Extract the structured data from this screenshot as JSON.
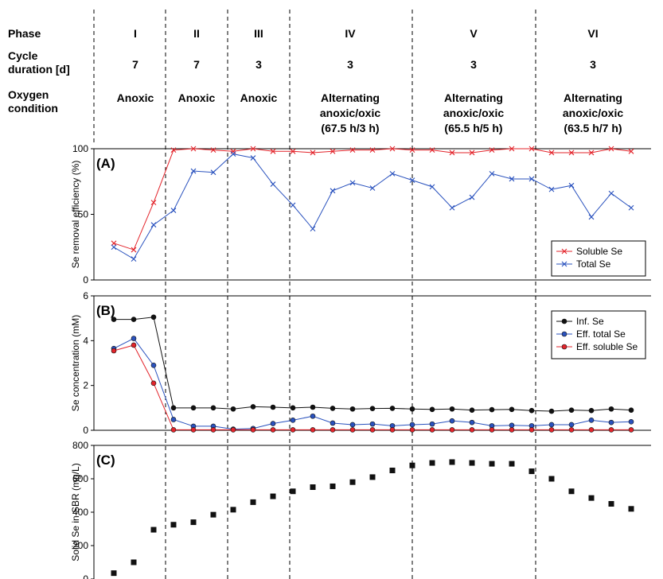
{
  "header": {
    "row_labels": [
      [
        "Phase"
      ],
      [
        "Cycle",
        " duration [d]"
      ],
      [
        "Oxygen",
        " condition"
      ]
    ],
    "phases": [
      {
        "name": "I",
        "duration": "7",
        "oxygen": [
          "Anoxic"
        ]
      },
      {
        "name": "II",
        "duration": "7",
        "oxygen": [
          "Anoxic"
        ]
      },
      {
        "name": "III",
        "duration": "3",
        "oxygen": [
          "Anoxic"
        ]
      },
      {
        "name": "IV",
        "duration": "3",
        "oxygen": [
          "Alternating",
          "anoxic/oxic",
          "(67.5 h/3 h)"
        ]
      },
      {
        "name": "V",
        "duration": "3",
        "oxygen": [
          "Alternating",
          "anoxic/oxic",
          "(65.5 h/5 h)"
        ]
      },
      {
        "name": "VI",
        "duration": "3",
        "oxygen": [
          "Alternating",
          "anoxic/oxic",
          "(63.5 h/7 h)"
        ]
      }
    ]
  },
  "chart_data": [
    {
      "type": "line",
      "panel_label": "(A)",
      "ylabel": "Se removal efficiency (%)",
      "ylim": [
        0,
        100
      ],
      "yticks": [
        "0",
        "50",
        "100"
      ],
      "legend_position": "bottom-right",
      "x": [
        1,
        2,
        3,
        4,
        5,
        6,
        7,
        8,
        9,
        10,
        11,
        12,
        13,
        14,
        15,
        16,
        17,
        18,
        19,
        20,
        21,
        22,
        23,
        24,
        25,
        26,
        27,
        28
      ],
      "series": [
        {
          "name": "Soluble Se",
          "color": "#e3242b",
          "marker": "x",
          "values": [
            28,
            23,
            59,
            99,
            100,
            99,
            98,
            100,
            98,
            98,
            97,
            98,
            99,
            99,
            100,
            99,
            99,
            97,
            97,
            99,
            100,
            100,
            97,
            97,
            97,
            100,
            98,
            null
          ]
        },
        {
          "name": "Total Se",
          "color": "#2a52be",
          "marker": "x",
          "values": [
            25,
            16,
            42,
            53,
            83,
            82,
            96,
            93,
            73,
            57,
            39,
            68,
            74,
            70,
            81,
            76,
            71,
            55,
            63,
            81,
            77,
            77,
            69,
            72,
            48,
            66,
            55,
            null
          ]
        }
      ]
    },
    {
      "type": "line",
      "panel_label": "(B)",
      "ylabel": "Se concentration (mM)",
      "ylim": [
        0,
        6
      ],
      "yticks": [
        "0",
        "2",
        "4",
        "6"
      ],
      "legend_position": "top-right",
      "x": [
        1,
        2,
        3,
        4,
        5,
        6,
        7,
        8,
        9,
        10,
        11,
        12,
        13,
        14,
        15,
        16,
        17,
        18,
        19,
        20,
        21,
        22,
        23,
        24,
        25,
        26,
        27,
        28
      ],
      "series": [
        {
          "name": "Inf. Se",
          "color": "#111111",
          "marker": "o",
          "values": [
            4.95,
            4.95,
            5.05,
            1.0,
            1.0,
            1.0,
            0.95,
            1.05,
            1.03,
            1.0,
            1.03,
            0.98,
            0.95,
            0.97,
            0.98,
            0.95,
            0.93,
            0.95,
            0.9,
            0.92,
            0.93,
            0.88,
            0.85,
            0.9,
            0.88,
            0.95,
            0.9,
            null
          ]
        },
        {
          "name": "Eff. total Se",
          "color": "#2a52be",
          "marker": "o",
          "values": [
            3.65,
            4.1,
            2.9,
            0.48,
            0.18,
            0.18,
            0.05,
            0.08,
            0.3,
            0.45,
            0.63,
            0.32,
            0.25,
            0.28,
            0.2,
            0.25,
            0.28,
            0.42,
            0.35,
            0.2,
            0.22,
            0.2,
            0.25,
            0.25,
            0.45,
            0.35,
            0.38,
            null
          ]
        },
        {
          "name": "Eff. soluble Se",
          "color": "#e3242b",
          "marker": "o",
          "values": [
            3.55,
            3.8,
            2.1,
            0.02,
            0.02,
            0.02,
            0.02,
            0.02,
            0.02,
            0.02,
            0.02,
            0.02,
            0.02,
            0.02,
            0.02,
            0.02,
            0.02,
            0.02,
            0.02,
            0.02,
            0.02,
            0.02,
            0.02,
            0.02,
            0.02,
            0.02,
            0.02,
            null
          ]
        }
      ]
    },
    {
      "type": "scatter",
      "panel_label": "(C)",
      "ylabel": "Solid Se in SBR (mg/L)",
      "ylim": [
        0,
        800
      ],
      "yticks": [
        "0",
        "200",
        "400",
        "600",
        "800"
      ],
      "x": [
        1,
        2,
        3,
        4,
        5,
        6,
        7,
        8,
        9,
        10,
        11,
        12,
        13,
        14,
        15,
        16,
        17,
        18,
        19,
        20,
        21,
        22,
        23,
        24,
        25,
        26,
        27,
        28
      ],
      "series": [
        {
          "name": "",
          "color": "#111111",
          "marker": "square",
          "values": [
            35,
            100,
            295,
            325,
            340,
            385,
            415,
            460,
            495,
            525,
            550,
            555,
            580,
            610,
            650,
            680,
            695,
            700,
            695,
            690,
            690,
            645,
            600,
            525,
            485,
            450,
            420,
            null
          ]
        }
      ]
    }
  ]
}
